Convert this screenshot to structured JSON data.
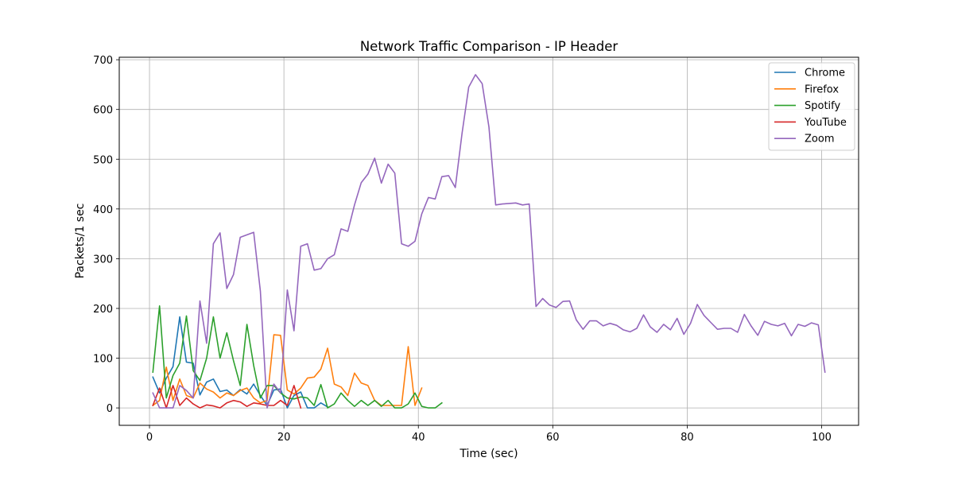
{
  "chart_data": {
    "type": "line",
    "title": "Network Traffic Comparison - IP Header",
    "xlabel": "Time (sec)",
    "ylabel": "Packets/1 sec",
    "xlim": [
      -4.5,
      105.5
    ],
    "ylim": [
      -35,
      705
    ],
    "xticks": [
      0,
      20,
      40,
      60,
      80,
      100
    ],
    "yticks": [
      0,
      100,
      200,
      300,
      400,
      500,
      600,
      700
    ],
    "grid": true,
    "legend_position": "top-right",
    "series": [
      {
        "name": "Chrome",
        "color": "#1f77b4",
        "x": [
          0.5,
          1.5,
          2.5,
          3.5,
          4.5,
          5.5,
          6.5,
          7.5,
          8.5,
          9.5,
          10.5,
          11.5,
          12.5,
          13.5,
          14.5,
          15.5,
          16.5,
          17.5,
          18.5,
          19.5,
          20.5,
          21.5,
          22.5,
          23.5,
          24.5,
          25.5,
          26.5
        ],
        "y": [
          62,
          30,
          60,
          83,
          183,
          92,
          90,
          26,
          52,
          58,
          33,
          36,
          25,
          37,
          28,
          48,
          25,
          5,
          36,
          38,
          0,
          25,
          32,
          0,
          0,
          10,
          2
        ]
      },
      {
        "name": "Firefox",
        "color": "#ff7f0e",
        "x": [
          0.5,
          1.5,
          2.5,
          3.5,
          4.5,
          5.5,
          6.5,
          7.5,
          8.5,
          9.5,
          10.5,
          11.5,
          12.5,
          13.5,
          14.5,
          15.5,
          16.5,
          17.5,
          18.5,
          19.5,
          20.5,
          21.5,
          22.5,
          23.5,
          24.5,
          25.5,
          26.5,
          27.5,
          28.5,
          29.5,
          30.5,
          31.5,
          32.5,
          33.5,
          34.5,
          35.5,
          36.5,
          37.5,
          38.5,
          39.5,
          40.5
        ],
        "y": [
          5,
          15,
          82,
          15,
          58,
          25,
          20,
          50,
          38,
          32,
          20,
          30,
          25,
          35,
          40,
          20,
          10,
          15,
          147,
          146,
          36,
          28,
          40,
          60,
          62,
          78,
          120,
          48,
          42,
          25,
          70,
          50,
          45,
          15,
          5,
          5,
          5,
          5,
          123,
          5,
          40
        ]
      },
      {
        "name": "Spotify",
        "color": "#2ca02c",
        "x": [
          0.5,
          1.5,
          2.5,
          3.5,
          4.5,
          5.5,
          6.5,
          7.5,
          8.5,
          9.5,
          10.5,
          11.5,
          12.5,
          13.5,
          14.5,
          15.5,
          16.5,
          17.5,
          18.5,
          19.5,
          20.5,
          21.5,
          22.5,
          23.5,
          24.5,
          25.5,
          26.5,
          27.5,
          28.5,
          29.5,
          30.5,
          31.5,
          32.5,
          33.5,
          34.5,
          35.5,
          36.5,
          37.5,
          38.5,
          39.5,
          40.5,
          41.5,
          42.5,
          43.5
        ],
        "y": [
          72,
          205,
          20,
          65,
          90,
          185,
          75,
          55,
          100,
          183,
          100,
          151,
          95,
          45,
          168,
          85,
          20,
          45,
          45,
          30,
          20,
          18,
          22,
          20,
          5,
          47,
          0,
          8,
          30,
          15,
          3,
          15,
          5,
          15,
          3,
          15,
          0,
          0,
          8,
          30,
          3,
          0,
          0,
          10
        ]
      },
      {
        "name": "YouTube",
        "color": "#d62728",
        "x": [
          0.5,
          1.5,
          2.5,
          3.5,
          4.5,
          5.5,
          6.5,
          7.5,
          8.5,
          9.5,
          10.5,
          11.5,
          12.5,
          13.5,
          14.5,
          15.5,
          16.5,
          17.5,
          18.5,
          19.5,
          20.5,
          21.5,
          22.5
        ],
        "y": [
          5,
          40,
          0,
          45,
          5,
          20,
          8,
          0,
          6,
          4,
          0,
          10,
          15,
          12,
          3,
          10,
          8,
          5,
          5,
          15,
          5,
          45,
          0
        ]
      },
      {
        "name": "Zoom",
        "color": "#9467bd",
        "x": [
          0.5,
          1.5,
          2.5,
          3.5,
          4.5,
          5.5,
          6.5,
          7.5,
          8.5,
          9.5,
          10.5,
          11.5,
          12.5,
          13.5,
          14.5,
          15.5,
          16.5,
          17.5,
          18.5,
          19.5,
          20.5,
          21.5,
          22.5,
          23.5,
          24.5,
          25.5,
          26.5,
          27.5,
          28.5,
          29.5,
          30.5,
          31.5,
          32.5,
          33.5,
          34.5,
          35.5,
          36.5,
          37.5,
          38.5,
          39.5,
          40.5,
          41.5,
          42.5,
          43.5,
          44.5,
          45.5,
          46.5,
          47.5,
          48.5,
          49.5,
          50.5,
          51.5,
          52.5,
          53.5,
          54.5,
          55.5,
          56.5,
          57.5,
          58.5,
          59.5,
          60.5,
          61.5,
          62.5,
          63.5,
          64.5,
          65.5,
          66.5,
          67.5,
          68.5,
          69.5,
          70.5,
          71.5,
          72.5,
          73.5,
          74.5,
          75.5,
          76.5,
          77.5,
          78.5,
          79.5,
          80.5,
          81.5,
          82.5,
          83.5,
          84.5,
          85.5,
          86.5,
          87.5,
          88.5,
          89.5,
          90.5,
          91.5,
          92.5,
          93.5,
          94.5,
          95.5,
          96.5,
          97.5,
          98.5,
          99.5,
          100.5
        ],
        "y": [
          30,
          0,
          0,
          0,
          45,
          35,
          20,
          215,
          130,
          330,
          352,
          240,
          268,
          343,
          348,
          353,
          235,
          0,
          48,
          30,
          237,
          155,
          325,
          330,
          277,
          280,
          300,
          308,
          360,
          355,
          408,
          453,
          470,
          502,
          452,
          490,
          472,
          330,
          325,
          335,
          390,
          423,
          420,
          465,
          467,
          443,
          552,
          645,
          670,
          652,
          565,
          408,
          410,
          411,
          412,
          408,
          410,
          204,
          220,
          207,
          202,
          214,
          215,
          177,
          158,
          175,
          175,
          165,
          170,
          166,
          157,
          153,
          160,
          187,
          163,
          152,
          168,
          157,
          180,
          148,
          170,
          208,
          186,
          172,
          158,
          160,
          160,
          152,
          188,
          165,
          146,
          174,
          168,
          165,
          170,
          145,
          168,
          164,
          171,
          167,
          72
        ]
      }
    ]
  }
}
